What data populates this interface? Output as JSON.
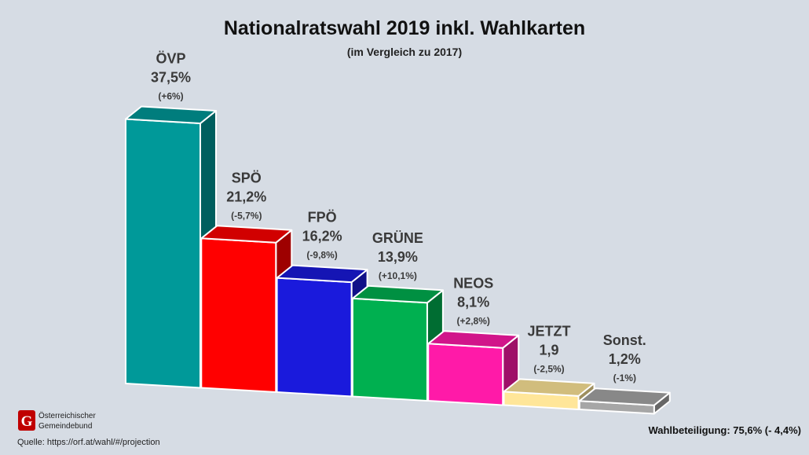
{
  "title": "Nationalratswahl 2019 inkl. Wahlkarten",
  "subtitle": "(im Vergleich zu 2017)",
  "turnout": "Wahlbeteiligung: 75,6% (- 4,4%)",
  "logo": {
    "line1": "Österreichischer",
    "line2": "Gemeindebund",
    "letter": "G"
  },
  "source": "Quelle: https://orf.at/wahl/#/projection",
  "chart_data": {
    "type": "bar",
    "title": "Nationalratswahl 2019 inkl. Wahlkarten",
    "subtitle": "(im Vergleich zu 2017)",
    "categories": [
      "ÖVP",
      "SPÖ",
      "FPÖ",
      "GRÜNE",
      "NEOS",
      "JETZT",
      "Sonst."
    ],
    "values": [
      37.5,
      21.2,
      16.2,
      13.9,
      8.1,
      1.9,
      1.2
    ],
    "value_labels": [
      "37,5%",
      "21,2%",
      "16,2%",
      "13,9%",
      "8,1%",
      "1,9",
      "1,2%"
    ],
    "change_labels": [
      "(+6%)",
      "(-5,7%)",
      "(-9,8%)",
      "(+10,1%)",
      "(+2,8%)",
      "(-2,5%)",
      "(-1%)"
    ],
    "colors": [
      "#009999",
      "#ff0000",
      "#1a1adc",
      "#00b050",
      "#ff1aa8",
      "#ffe699",
      "#a6a6a6"
    ],
    "xlabel": "",
    "ylabel": "",
    "ylim": [
      0,
      38
    ],
    "grid": false,
    "legend": "none"
  }
}
